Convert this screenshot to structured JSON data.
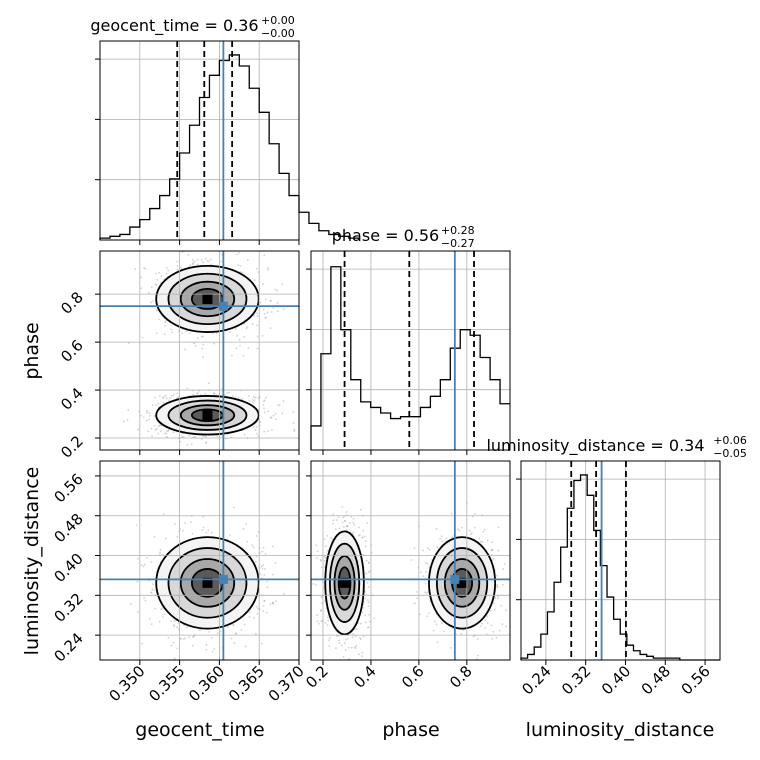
{
  "chart_data": {
    "type": "corner",
    "parameters": [
      "geocent_time",
      "phase",
      "luminosity_distance"
    ],
    "truths": [
      0.3605,
      0.75,
      0.352
    ],
    "colors": {
      "truth": "#4682b4",
      "hist": "#000000",
      "grid": "#b0b0b0",
      "scatter": "#9a9a9a"
    },
    "grid": true,
    "titles": [
      {
        "name": "geocent_time",
        "value": "0.36",
        "plus": "+0.00",
        "minus": "−0.00"
      },
      {
        "name": "phase",
        "value": "0.56",
        "plus": "+0.28",
        "minus": "−0.27"
      },
      {
        "name": "luminosity_distance",
        "value": "0.34",
        "plus": "+0.06",
        "minus": "−0.05"
      }
    ],
    "axes": {
      "geocent_time": {
        "range": [
          0.345,
          0.37
        ],
        "ticks": [
          "0.350",
          "0.355",
          "0.360",
          "0.365",
          "0.370"
        ],
        "tick_values": [
          0.35,
          0.355,
          0.36,
          0.365,
          0.37
        ]
      },
      "phase": {
        "range": [
          0.15,
          0.98
        ],
        "ticks": [
          "0.2",
          "0.4",
          "0.6",
          "0.8"
        ],
        "tick_values": [
          0.2,
          0.4,
          0.6,
          0.8
        ]
      },
      "luminosity_distance": {
        "range": [
          0.19,
          0.59
        ],
        "ticks": [
          "0.24",
          "0.32",
          "0.40",
          "0.48",
          "0.56"
        ],
        "tick_values": [
          0.24,
          0.32,
          0.4,
          0.48,
          0.56
        ]
      }
    },
    "quantiles": {
      "geocent_time": [
        0.3547,
        0.3581,
        0.3616
      ],
      "phase": [
        0.29,
        0.56,
        0.83
      ],
      "luminosity_distance": [
        0.291,
        0.341,
        0.401
      ]
    },
    "histograms": {
      "geocent_time": {
        "edges_start": 0.345,
        "bin_width": 0.00125,
        "counts": [
          0.01,
          0.02,
          0.03,
          0.07,
          0.11,
          0.17,
          0.24,
          0.33,
          0.47,
          0.62,
          0.77,
          0.89,
          0.97,
          1.0,
          0.94,
          0.82,
          0.69,
          0.52,
          0.36,
          0.24,
          0.15,
          0.09,
          0.05,
          0.03,
          0.02,
          0.01
        ]
      },
      "phase": {
        "edges_start": 0.15,
        "bin_width": 0.0415,
        "counts": [
          0.13,
          0.52,
          0.99,
          0.65,
          0.38,
          0.26,
          0.23,
          0.2,
          0.17,
          0.18,
          0.18,
          0.23,
          0.29,
          0.38,
          0.55,
          0.65,
          0.62,
          0.5,
          0.38,
          0.25
        ]
      },
      "luminosity_distance": {
        "edges_start": 0.19,
        "bin_width": 0.0133,
        "counts": [
          0.01,
          0.03,
          0.07,
          0.14,
          0.26,
          0.42,
          0.61,
          0.82,
          0.97,
          1.0,
          0.89,
          0.7,
          0.51,
          0.34,
          0.22,
          0.14,
          0.08,
          0.05,
          0.03,
          0.02,
          0.01,
          0.01,
          0.01,
          0.01,
          0.0,
          0.0,
          0.0,
          0.0,
          0.0,
          0.0
        ]
      }
    },
    "joint_modes": {
      "phase|geocent_time": [
        {
          "x": 0.3585,
          "y": 0.295,
          "sx": 0.0028,
          "sy": 0.035,
          "w": 1.0
        },
        {
          "x": 0.3585,
          "y": 0.78,
          "sx": 0.0028,
          "sy": 0.06,
          "w": 0.85
        }
      ],
      "luminosity_distance|geocent_time": [
        {
          "x": 0.3585,
          "y": 0.345,
          "sx": 0.0028,
          "sy": 0.04,
          "w": 1.0
        }
      ],
      "luminosity_distance|phase": [
        {
          "x": 0.29,
          "y": 0.345,
          "sx": 0.035,
          "sy": 0.045,
          "w": 1.0
        },
        {
          "x": 0.78,
          "y": 0.345,
          "sx": 0.06,
          "sy": 0.04,
          "w": 0.85
        }
      ]
    }
  }
}
